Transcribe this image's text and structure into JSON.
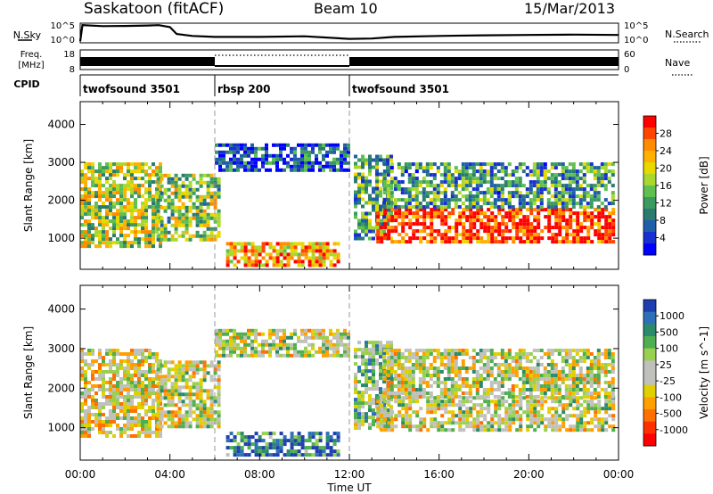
{
  "header": {
    "station": "Saskatoon (fitACF)",
    "beam": "Beam 10",
    "date": "15/Mar/2013"
  },
  "chart_data": [
    {
      "type": "line",
      "name": "noise-panel",
      "left_label": "N.Sky",
      "right_label": "N.Search",
      "left_ticks": [
        "10^5",
        "10^0"
      ],
      "right_ticks": [
        "10^5",
        "10^0"
      ],
      "x_range_hours": [
        0,
        24
      ],
      "series": [
        {
          "name": "N.Sky",
          "x": [
            0,
            0.1,
            1,
            2,
            3,
            3.5,
            4,
            4.3,
            5,
            6,
            8,
            10,
            12,
            13,
            14,
            16,
            18,
            20,
            22,
            24
          ],
          "y": [
            0.08,
            0.9,
            0.85,
            0.86,
            0.88,
            0.9,
            0.8,
            0.45,
            0.35,
            0.3,
            0.3,
            0.33,
            0.2,
            0.22,
            0.3,
            0.35,
            0.38,
            0.4,
            0.42,
            0.4
          ]
        }
      ]
    },
    {
      "type": "line",
      "name": "freq-panel",
      "left_label": "Freq.\n[MHz]",
      "right_label": "Nave",
      "left_ticks": [
        "18",
        "8"
      ],
      "right_ticks": [
        "60",
        "0"
      ],
      "x_range_hours": [
        0,
        24
      ],
      "segments": [
        {
          "x0": 0,
          "x1": 6,
          "style": "band"
        },
        {
          "x0": 6,
          "x1": 12,
          "style": "dotted"
        },
        {
          "x0": 12,
          "x1": 24,
          "style": "band"
        }
      ]
    },
    {
      "type": "table",
      "name": "cpid",
      "label": "CPID",
      "modes": [
        {
          "start": 0,
          "end": 6,
          "text": "twofsound 3501"
        },
        {
          "start": 6,
          "end": 12,
          "text": "rbsp 200"
        },
        {
          "start": 12,
          "end": 24,
          "text": "twofsound 3501"
        }
      ]
    },
    {
      "type": "heatmap",
      "name": "power",
      "ylabel": "Slant Range [km]",
      "x_range_hours": [
        0,
        24
      ],
      "ylim": [
        180,
        4600
      ],
      "yticks": [
        1000,
        2000,
        3000,
        4000
      ],
      "colorbar_label": "Power [dB]",
      "colorbar_ticks": [
        "28",
        "24",
        "20",
        "16",
        "12",
        "8",
        "4"
      ],
      "colorbar_colors": [
        "#ff0000",
        "#ff4500",
        "#ff8c00",
        "#ffb000",
        "#e8d800",
        "#a8d830",
        "#5fc050",
        "#3a9a60",
        "#2a7a70",
        "#1f5faa",
        "#1830d0",
        "#0000ff"
      ],
      "regions": [
        {
          "t0": 0,
          "t1": 3.6,
          "r0": 800,
          "r1": 3000,
          "level": 0.55
        },
        {
          "t0": 3.4,
          "t1": 6.2,
          "r0": 1000,
          "r1": 2700,
          "level": 0.5
        },
        {
          "t0": 6,
          "t1": 12,
          "r0": 2800,
          "r1": 3500,
          "level": 0.2
        },
        {
          "t0": 6.5,
          "t1": 11.5,
          "r0": 300,
          "r1": 900,
          "level": 0.75
        },
        {
          "t0": 12.2,
          "t1": 13.8,
          "r0": 1000,
          "r1": 3200,
          "level": 0.4
        },
        {
          "t0": 13.2,
          "t1": 23.8,
          "r0": 900,
          "r1": 1800,
          "level": 0.92
        },
        {
          "t0": 13.5,
          "t1": 23.8,
          "r0": 1800,
          "r1": 3000,
          "level": 0.35
        }
      ]
    },
    {
      "type": "heatmap",
      "name": "velocity",
      "ylabel": "Slant Range [km]",
      "xlabel": "Time UT",
      "x_range_hours": [
        0,
        24
      ],
      "x_ticks": [
        "00:00",
        "04:00",
        "08:00",
        "12:00",
        "16:00",
        "20:00",
        "00:00"
      ],
      "ylim": [
        180,
        4600
      ],
      "yticks": [
        1000,
        2000,
        3000,
        4000
      ],
      "colorbar_label": "Velocity [m s^-1]",
      "colorbar_ticks": [
        "1000",
        "500",
        "100",
        "25",
        "-25",
        "-100",
        "-500",
        "-1000"
      ],
      "colorbar_colors": [
        "#1f3fb0",
        "#2f6fb8",
        "#2a8a6a",
        "#4fae50",
        "#9ad050",
        "#c0c0bc",
        "#c0c0bc",
        "#e0d000",
        "#ffa000",
        "#ff7000",
        "#ff3000",
        "#ff0000"
      ],
      "regions": [
        {
          "t0": 0,
          "t1": 3.6,
          "r0": 800,
          "r1": 3000,
          "level": 0.45
        },
        {
          "t0": 3.4,
          "t1": 6.2,
          "r0": 1000,
          "r1": 2700,
          "level": 0.5
        },
        {
          "t0": 6,
          "t1": 12,
          "r0": 2800,
          "r1": 3500,
          "level": 0.5
        },
        {
          "t0": 6.5,
          "t1": 11.5,
          "r0": 300,
          "r1": 900,
          "level": 0.85
        },
        {
          "t0": 12.2,
          "t1": 13.8,
          "r0": 1000,
          "r1": 3200,
          "level": 0.6
        },
        {
          "t0": 13.2,
          "t1": 23.8,
          "r0": 900,
          "r1": 1800,
          "level": 0.5
        },
        {
          "t0": 13.5,
          "t1": 23.8,
          "r0": 1800,
          "r1": 3000,
          "level": 0.5
        }
      ]
    }
  ]
}
